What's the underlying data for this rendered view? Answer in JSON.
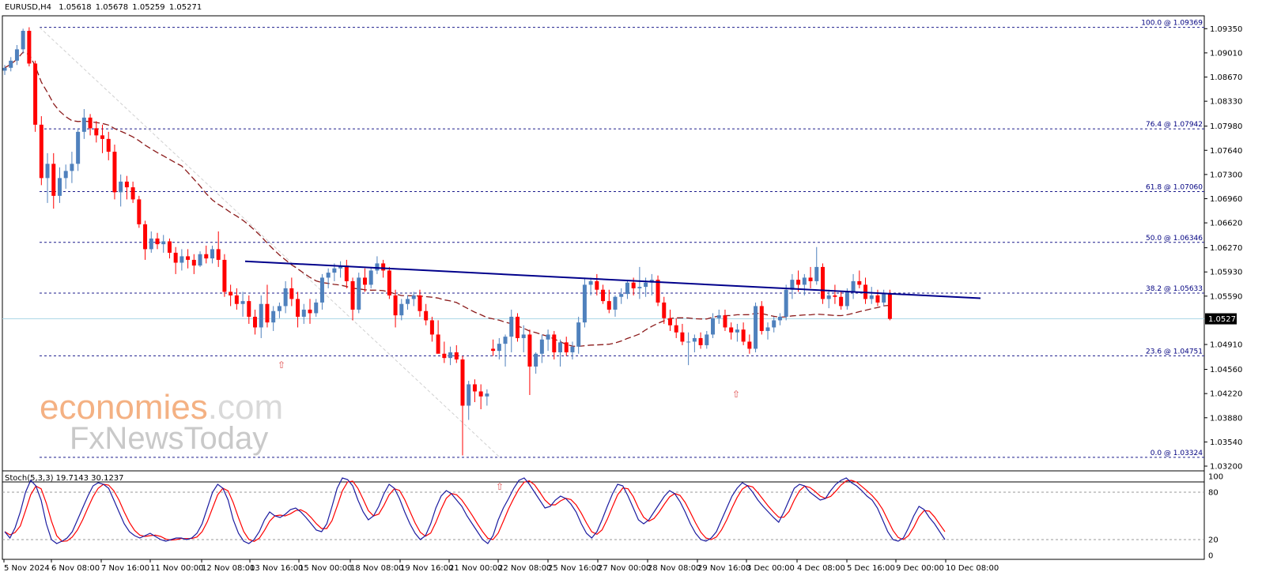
{
  "header": {
    "symbol": "EURUSD,H4",
    "open": "1.05618",
    "high": "1.05678",
    "low": "1.05259",
    "close": "1.05271"
  },
  "watermark": {
    "brand": "economies",
    "brand_suffix": ".com",
    "sub": "FxNewsToday",
    "color_orange": "#f4b183",
    "color_gray": "#c9c9c9"
  },
  "colors": {
    "bull": "#4f81bd",
    "bear": "#ff0000",
    "fib_line": "#1c1c8c",
    "trendline": "#00008b",
    "ma": "#8b1a1a",
    "stoch_main": "#1c1ca0",
    "stoch_signal": "#ff0000",
    "price_line": "#add8e6",
    "arrow": "#e05050"
  },
  "chart_data": {
    "type": "candlestick",
    "symbol": "EURUSD",
    "timeframe": "H4",
    "price_axis": {
      "ticks": [
        "1.09350",
        "1.09010",
        "1.08670",
        "1.08330",
        "1.07980",
        "1.07640",
        "1.07300",
        "1.06960",
        "1.06620",
        "1.06270",
        "1.05930",
        "1.05590",
        "1.04910",
        "1.04560",
        "1.04220",
        "1.03880",
        "1.03540",
        "1.03200"
      ],
      "current_price": "1.05271",
      "ylim": [
        1.032,
        1.0952
      ]
    },
    "time_axis": [
      "5 Nov 2024",
      "6 Nov 08:00",
      "7 Nov 16:00",
      "11 Nov 00:00",
      "12 Nov 08:00",
      "13 Nov 16:00",
      "15 Nov 00:00",
      "18 Nov 08:00",
      "19 Nov 16:00",
      "21 Nov 00:00",
      "22 Nov 08:00",
      "25 Nov 16:00",
      "27 Nov 00:00",
      "28 Nov 08:00",
      "29 Nov 16:00",
      "3 Dec 00:00",
      "4 Dec 08:00",
      "5 Dec 16:00",
      "9 Dec 00:00",
      "10 Dec 08:00"
    ],
    "fibonacci": [
      {
        "label": "100.0 @ 1.09369",
        "price": 1.09369
      },
      {
        "label": "76.4 @ 1.07942",
        "price": 1.07942
      },
      {
        "label": "61.8 @ 1.07060",
        "price": 1.0706
      },
      {
        "label": "50.0 @ 1.06346",
        "price": 1.06346
      },
      {
        "label": "38.2 @ 1.05633",
        "price": 1.05633
      },
      {
        "label": "23.6 @ 1.04751",
        "price": 1.04751
      },
      {
        "label": "0.0 @ 1.03324",
        "price": 1.03324
      }
    ],
    "candles_ohlc": [
      [
        1.0876,
        1.0884,
        1.087,
        1.088
      ],
      [
        1.088,
        1.0895,
        1.0875,
        1.089
      ],
      [
        1.089,
        1.0912,
        1.0884,
        1.0906
      ],
      [
        1.0906,
        1.0935,
        1.09,
        1.0932
      ],
      [
        1.0932,
        1.0937,
        1.0882,
        1.0886
      ],
      [
        1.0886,
        1.089,
        1.079,
        1.08
      ],
      [
        1.08,
        1.0812,
        1.0715,
        1.0725
      ],
      [
        1.0725,
        1.076,
        1.069,
        1.0745
      ],
      [
        1.0745,
        1.076,
        1.0682,
        1.07
      ],
      [
        1.07,
        1.074,
        1.069,
        1.0725
      ],
      [
        1.0725,
        1.0744,
        1.071,
        1.0735
      ],
      [
        1.0735,
        1.0762,
        1.0718,
        1.0745
      ],
      [
        1.0745,
        1.0795,
        1.0735,
        1.079
      ],
      [
        1.079,
        1.0822,
        1.078,
        1.081
      ],
      [
        1.081,
        1.0815,
        1.0785,
        1.0795
      ],
      [
        1.0795,
        1.0805,
        1.0775,
        1.0785
      ],
      [
        1.0785,
        1.08,
        1.076,
        1.078
      ],
      [
        1.078,
        1.079,
        1.075,
        1.0762
      ],
      [
        1.0762,
        1.0772,
        1.0695,
        1.0705
      ],
      [
        1.0705,
        1.073,
        1.0685,
        1.072
      ],
      [
        1.072,
        1.0728,
        1.0695,
        1.0712
      ],
      [
        1.0712,
        1.072,
        1.069,
        1.0695
      ],
      [
        1.0695,
        1.07,
        1.0655,
        1.066
      ],
      [
        1.066,
        1.0665,
        1.061,
        1.0625
      ],
      [
        1.0625,
        1.065,
        1.062,
        1.064
      ],
      [
        1.064,
        1.0648,
        1.0625,
        1.0632
      ],
      [
        1.0632,
        1.0645,
        1.062,
        1.0636
      ],
      [
        1.0636,
        1.064,
        1.0612,
        1.062
      ],
      [
        1.062,
        1.0628,
        1.059,
        1.0606
      ],
      [
        1.0606,
        1.0625,
        1.0595,
        1.0615
      ],
      [
        1.0615,
        1.0625,
        1.0598,
        1.061
      ],
      [
        1.061,
        1.0618,
        1.059,
        1.0602
      ],
      [
        1.0602,
        1.0622,
        1.06,
        1.0618
      ],
      [
        1.0618,
        1.063,
        1.0605,
        1.0612
      ],
      [
        1.0612,
        1.063,
        1.0605,
        1.0625
      ],
      [
        1.0625,
        1.065,
        1.06,
        1.061
      ],
      [
        1.061,
        1.0618,
        1.0558,
        1.0565
      ],
      [
        1.0565,
        1.0575,
        1.0545,
        1.056
      ],
      [
        1.056,
        1.057,
        1.054,
        1.0548
      ],
      [
        1.0548,
        1.0565,
        1.053,
        1.0552
      ],
      [
        1.0552,
        1.056,
        1.052,
        1.053
      ],
      [
        1.053,
        1.054,
        1.0505,
        1.0515
      ],
      [
        1.0515,
        1.056,
        1.05,
        1.0548
      ],
      [
        1.0548,
        1.0575,
        1.0515,
        1.0522
      ],
      [
        1.0522,
        1.0545,
        1.051,
        1.0538
      ],
      [
        1.0538,
        1.055,
        1.0528,
        1.0545
      ],
      [
        1.0545,
        1.058,
        1.0535,
        1.057
      ],
      [
        1.057,
        1.0585,
        1.0545,
        1.0555
      ],
      [
        1.0555,
        1.0565,
        1.0515,
        1.053
      ],
      [
        1.053,
        1.0548,
        1.052,
        1.054
      ],
      [
        1.054,
        1.0555,
        1.052,
        1.0535
      ],
      [
        1.0535,
        1.0555,
        1.053,
        1.055
      ],
      [
        1.055,
        1.059,
        1.054,
        1.0585
      ],
      [
        1.0585,
        1.0598,
        1.057,
        1.0592
      ],
      [
        1.0592,
        1.0605,
        1.058,
        1.0598
      ],
      [
        1.0598,
        1.0608,
        1.0585,
        1.0602
      ],
      [
        1.0602,
        1.061,
        1.057,
        1.058
      ],
      [
        1.058,
        1.0585,
        1.0525,
        1.054
      ],
      [
        1.054,
        1.0592,
        1.0535,
        1.0585
      ],
      [
        1.0585,
        1.0598,
        1.0565,
        1.0575
      ],
      [
        1.0575,
        1.06,
        1.057,
        1.0595
      ],
      [
        1.0595,
        1.0615,
        1.059,
        1.0605
      ],
      [
        1.0605,
        1.061,
        1.0585,
        1.0595
      ],
      [
        1.0595,
        1.06,
        1.0555,
        1.056
      ],
      [
        1.056,
        1.0568,
        1.0515,
        1.0532
      ],
      [
        1.0532,
        1.0555,
        1.0525,
        1.0548
      ],
      [
        1.0548,
        1.056,
        1.054,
        1.0555
      ],
      [
        1.0555,
        1.0565,
        1.0545,
        1.056
      ],
      [
        1.056,
        1.0568,
        1.053,
        1.0538
      ],
      [
        1.0538,
        1.0548,
        1.0518,
        1.0525
      ],
      [
        1.0525,
        1.053,
        1.0495,
        1.0505
      ],
      [
        1.0505,
        1.0525,
        1.0485,
        1.0478
      ],
      [
        1.0478,
        1.0495,
        1.0465,
        1.0472
      ],
      [
        1.0472,
        1.0488,
        1.0462,
        1.048
      ],
      [
        1.048,
        1.049,
        1.0465,
        1.047
      ],
      [
        1.047,
        1.0475,
        1.0335,
        1.0405
      ],
      [
        1.0405,
        1.044,
        1.0385,
        1.0435
      ],
      [
        1.0435,
        1.0442,
        1.041,
        1.0425
      ],
      [
        1.0425,
        1.0435,
        1.04,
        1.0418
      ],
      [
        1.0418,
        1.0428,
        1.0405,
        1.0422
      ],
      [
        1.0485,
        1.0498,
        1.0475,
        1.0482
      ],
      [
        1.0482,
        1.05,
        1.047,
        1.0492
      ],
      [
        1.0492,
        1.0505,
        1.046,
        1.0502
      ],
      [
        1.0502,
        1.054,
        1.048,
        1.053
      ],
      [
        1.053,
        1.0535,
        1.0495,
        1.05
      ],
      [
        1.05,
        1.0518,
        1.048,
        1.0505
      ],
      [
        1.0505,
        1.0512,
        1.042,
        1.046
      ],
      [
        1.046,
        1.048,
        1.045,
        1.0478
      ],
      [
        1.0478,
        1.0505,
        1.0465,
        1.0498
      ],
      [
        1.0498,
        1.0512,
        1.0482,
        1.0505
      ],
      [
        1.0505,
        1.051,
        1.047,
        1.048
      ],
      [
        1.048,
        1.0498,
        1.046,
        1.0494
      ],
      [
        1.0494,
        1.0502,
        1.0475,
        1.048
      ],
      [
        1.048,
        1.0495,
        1.047,
        1.0488
      ],
      [
        1.0488,
        1.053,
        1.0478,
        1.0522
      ],
      [
        1.0522,
        1.0585,
        1.0515,
        1.0575
      ],
      [
        1.0575,
        1.0585,
        1.056,
        1.058
      ],
      [
        1.058,
        1.059,
        1.056,
        1.0568
      ],
      [
        1.0568,
        1.0575,
        1.0548,
        1.0552
      ],
      [
        1.0552,
        1.0568,
        1.0535,
        1.054
      ],
      [
        1.054,
        1.056,
        1.053,
        1.0558
      ],
      [
        1.0558,
        1.057,
        1.0548,
        1.0562
      ],
      [
        1.0562,
        1.058,
        1.0555,
        1.0578
      ],
      [
        1.0578,
        1.0585,
        1.056,
        1.057
      ],
      [
        1.057,
        1.06,
        1.0555,
        1.0572
      ],
      [
        1.0572,
        1.0585,
        1.0558,
        1.0578
      ],
      [
        1.0578,
        1.059,
        1.056,
        1.0582
      ],
      [
        1.0582,
        1.0588,
        1.0545,
        1.055
      ],
      [
        1.055,
        1.0558,
        1.052,
        1.0528
      ],
      [
        1.0528,
        1.054,
        1.051,
        1.0518
      ],
      [
        1.0518,
        1.0528,
        1.05,
        1.0508
      ],
      [
        1.0508,
        1.052,
        1.049,
        1.0495
      ],
      [
        1.0495,
        1.0508,
        1.0462,
        1.0495
      ],
      [
        1.0495,
        1.0505,
        1.048,
        1.05
      ],
      [
        1.05,
        1.0508,
        1.0485,
        1.049
      ],
      [
        1.049,
        1.051,
        1.0485,
        1.0505
      ],
      [
        1.0505,
        1.0535,
        1.05,
        1.0528
      ],
      [
        1.0528,
        1.054,
        1.052,
        1.0532
      ],
      [
        1.0532,
        1.054,
        1.051,
        1.0515
      ],
      [
        1.0515,
        1.0522,
        1.0498,
        1.0508
      ],
      [
        1.0508,
        1.052,
        1.0495,
        1.0512
      ],
      [
        1.0512,
        1.0522,
        1.049,
        1.0495
      ],
      [
        1.0495,
        1.0505,
        1.0478,
        1.0485
      ],
      [
        1.0485,
        1.055,
        1.048,
        1.0545
      ],
      [
        1.0545,
        1.0552,
        1.0505,
        1.051
      ],
      [
        1.051,
        1.0522,
        1.0498,
        1.0515
      ],
      [
        1.0515,
        1.053,
        1.0508,
        1.0525
      ],
      [
        1.0525,
        1.0535,
        1.0518,
        1.053
      ],
      [
        1.053,
        1.0575,
        1.0525,
        1.0568
      ],
      [
        1.0568,
        1.059,
        1.0555,
        1.0582
      ],
      [
        1.0582,
        1.0595,
        1.0565,
        1.0575
      ],
      [
        1.0575,
        1.059,
        1.056,
        1.0585
      ],
      [
        1.0585,
        1.06,
        1.057,
        1.058
      ],
      [
        1.058,
        1.0628,
        1.0575,
        1.06
      ],
      [
        1.06,
        1.0605,
        1.0548,
        1.0555
      ],
      [
        1.0555,
        1.0568,
        1.0542,
        1.056
      ],
      [
        1.056,
        1.0575,
        1.0548,
        1.0558
      ],
      [
        1.0558,
        1.0565,
        1.054,
        1.0545
      ],
      [
        1.0545,
        1.057,
        1.054,
        1.0565
      ],
      [
        1.0565,
        1.059,
        1.0555,
        1.058
      ],
      [
        1.058,
        1.0595,
        1.057,
        1.0575
      ],
      [
        1.0575,
        1.0585,
        1.0548,
        1.0555
      ],
      [
        1.0555,
        1.0572,
        1.0548,
        1.056
      ],
      [
        1.056,
        1.0568,
        1.0545,
        1.055
      ],
      [
        1.055,
        1.0568,
        1.0545,
        1.0562
      ],
      [
        1.0562,
        1.0568,
        1.0525,
        1.0527
      ]
    ],
    "moving_average": {
      "style": "dashed"
    },
    "trendline": {
      "from_price": 1.0608,
      "to_price": 1.0556
    },
    "markers": [
      "up-arrow",
      "up-arrow",
      "up-arrow"
    ],
    "stochastic": {
      "label": "Stoch(5,3,3) 19.7143 30.1237",
      "axis_ticks": [
        "100",
        "80",
        "20",
        "0"
      ],
      "levels": [
        80,
        20
      ],
      "main": [
        30,
        22,
        35,
        55,
        80,
        95,
        88,
        70,
        40,
        20,
        15,
        18,
        22,
        30,
        45,
        60,
        75,
        88,
        92,
        90,
        85,
        70,
        55,
        40,
        30,
        25,
        22,
        25,
        28,
        24,
        20,
        18,
        20,
        22,
        22,
        20,
        22,
        28,
        40,
        60,
        80,
        90,
        85,
        70,
        45,
        28,
        18,
        15,
        20,
        30,
        45,
        55,
        50,
        48,
        52,
        58,
        60,
        55,
        48,
        40,
        32,
        30,
        40,
        62,
        85,
        98,
        96,
        88,
        70,
        55,
        45,
        50,
        62,
        78,
        90,
        85,
        72,
        55,
        40,
        28,
        20,
        25,
        40,
        60,
        75,
        82,
        78,
        70,
        62,
        50,
        40,
        30,
        20,
        15,
        25,
        45,
        60,
        72,
        85,
        95,
        98,
        90,
        80,
        70,
        60,
        62,
        70,
        75,
        72,
        65,
        55,
        40,
        28,
        22,
        30,
        45,
        62,
        78,
        90,
        88,
        75,
        60,
        45,
        40,
        45,
        55,
        65,
        75,
        82,
        78,
        68,
        55,
        40,
        28,
        20,
        18,
        22,
        30,
        45,
        60,
        75,
        85,
        92,
        88,
        80,
        70,
        62,
        55,
        48,
        42,
        55,
        70,
        85,
        90,
        88,
        80,
        75,
        70,
        72,
        82,
        90,
        95,
        98,
        92,
        88,
        82,
        75,
        70,
        60,
        45,
        30,
        20,
        18,
        22,
        35,
        50,
        62,
        58,
        48,
        40,
        30,
        20
      ]
    }
  }
}
